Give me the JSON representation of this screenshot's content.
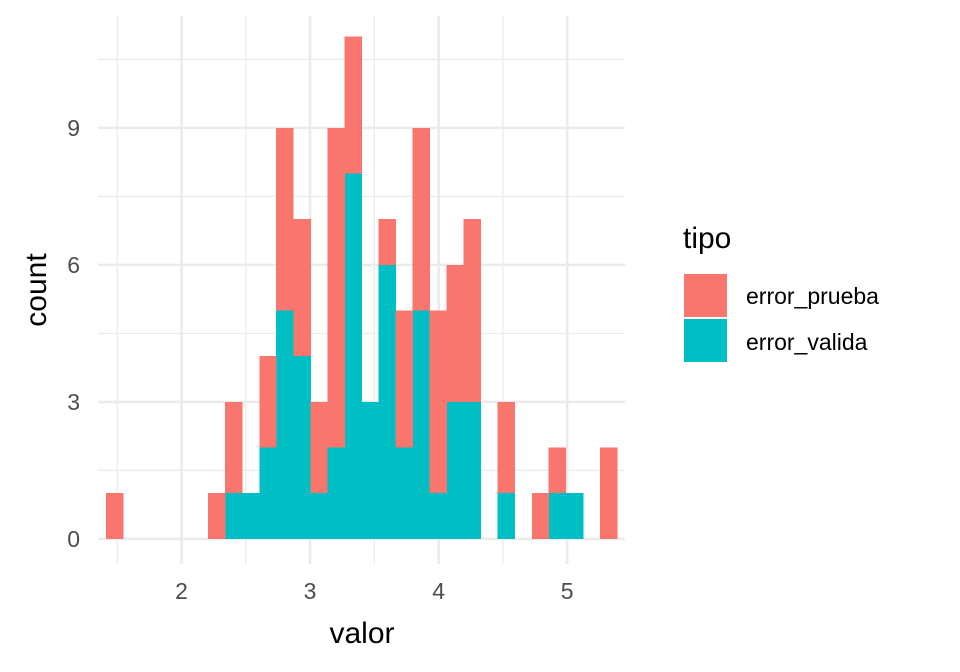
{
  "chart_data": {
    "type": "bar",
    "stacked": true,
    "title": "",
    "xlabel": "valor",
    "ylabel": "count",
    "bin_width": 0.1325,
    "xlim": [
      1.35,
      5.45
    ],
    "ylim": [
      -0.55,
      11.45
    ],
    "x_ticks": [
      2,
      3,
      4,
      5
    ],
    "y_ticks": [
      0,
      3,
      6,
      9
    ],
    "grid": true,
    "legend": {
      "title": "tipo",
      "position": "right"
    },
    "bin_centers": [
      1.478,
      1.611,
      1.743,
      1.876,
      2.008,
      2.141,
      2.273,
      2.406,
      2.538,
      2.671,
      2.803,
      2.936,
      3.068,
      3.201,
      3.333,
      3.466,
      3.598,
      3.731,
      3.863,
      3.996,
      4.128,
      4.261,
      4.393,
      4.526,
      4.658,
      4.791,
      4.923,
      5.056,
      5.188,
      5.321
    ],
    "series": [
      {
        "name": "error_valida",
        "color": "#00BFC4",
        "values": [
          0,
          0,
          0,
          0,
          0,
          0,
          0,
          1,
          1,
          2,
          5,
          4,
          1,
          2,
          8,
          3,
          6,
          2,
          5,
          1,
          3,
          3,
          0,
          1,
          0,
          0,
          1,
          1,
          0,
          0
        ]
      },
      {
        "name": "error_prueba",
        "color": "#F8766D",
        "values": [
          1,
          0,
          0,
          0,
          0,
          0,
          1,
          2,
          0,
          2,
          4,
          3,
          2,
          7,
          3,
          0,
          1,
          3,
          4,
          4,
          3,
          4,
          0,
          2,
          0,
          1,
          1,
          0,
          0,
          2
        ]
      }
    ]
  }
}
